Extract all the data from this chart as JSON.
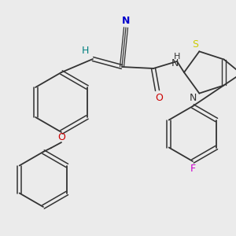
{
  "background_color": "#ebebeb",
  "figure_size": [
    3.0,
    3.0
  ],
  "dpi": 100,
  "bond_color": "#333333",
  "lw": 1.3,
  "colors": {
    "N": "#0000cc",
    "O": "#cc0000",
    "S": "#cccc00",
    "F": "#cc00cc",
    "H": "#008080",
    "C": "#333333"
  }
}
